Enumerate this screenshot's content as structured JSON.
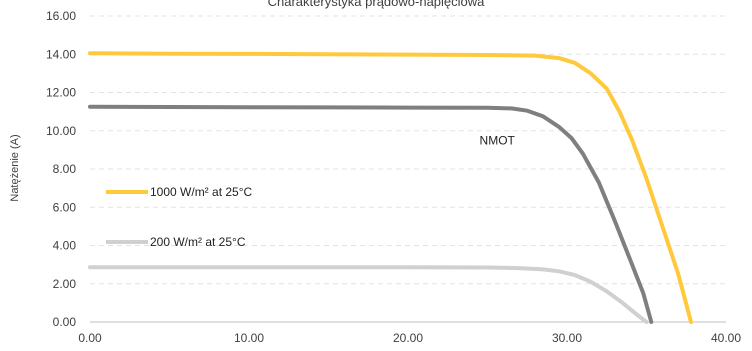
{
  "chart_data": {
    "type": "line",
    "title": "Charakterystyka prądowo-napięciowa",
    "xlabel": "",
    "ylabel": "Natężenie (A)",
    "xlim": [
      0,
      40
    ],
    "ylim": [
      0,
      16
    ],
    "x_ticks": [
      "0.00",
      "10.00",
      "20.00",
      "30.00",
      "40.00"
    ],
    "y_ticks": [
      "0.00",
      "2.00",
      "4.00",
      "6.00",
      "8.00",
      "10.00",
      "12.00",
      "14.00",
      "16.00"
    ],
    "grid": "horizontal dashed",
    "legend_position": "left",
    "annotations": [
      {
        "text": "NMOT",
        "x": 24.5,
        "y": 9.5
      }
    ],
    "series": [
      {
        "name": "1000 W/m² at 25°C",
        "color": "#FFC93C",
        "legend": true,
        "points": [
          [
            0,
            14.05
          ],
          [
            5,
            14.03
          ],
          [
            10,
            14.02
          ],
          [
            15,
            14.0
          ],
          [
            20,
            13.98
          ],
          [
            25,
            13.96
          ],
          [
            28,
            13.93
          ],
          [
            29.5,
            13.8
          ],
          [
            30.5,
            13.55
          ],
          [
            31.5,
            13.0
          ],
          [
            32.5,
            12.2
          ],
          [
            33.3,
            11.0
          ],
          [
            34.1,
            9.5
          ],
          [
            35.0,
            7.5
          ],
          [
            36.0,
            5.0
          ],
          [
            37.0,
            2.5
          ],
          [
            37.8,
            0.0
          ]
        ]
      },
      {
        "name": "",
        "color": "#7F7F7F",
        "legend": false,
        "points": [
          [
            0,
            11.25
          ],
          [
            5,
            11.24
          ],
          [
            10,
            11.23
          ],
          [
            15,
            11.22
          ],
          [
            20,
            11.21
          ],
          [
            25,
            11.2
          ],
          [
            26.5,
            11.17
          ],
          [
            27.5,
            11.05
          ],
          [
            28.5,
            10.75
          ],
          [
            29.5,
            10.2
          ],
          [
            30.3,
            9.6
          ],
          [
            31.0,
            8.8
          ],
          [
            32.0,
            7.3
          ],
          [
            33.0,
            5.3
          ],
          [
            34.0,
            3.2
          ],
          [
            34.8,
            1.5
          ],
          [
            35.3,
            0.0
          ]
        ]
      },
      {
        "name": "200 W/m² at 25°C",
        "color": "#D0D0D0",
        "legend": true,
        "points": [
          [
            0,
            2.86
          ],
          [
            5,
            2.86
          ],
          [
            10,
            2.86
          ],
          [
            15,
            2.86
          ],
          [
            20,
            2.86
          ],
          [
            25,
            2.85
          ],
          [
            27,
            2.82
          ],
          [
            28.5,
            2.75
          ],
          [
            29.5,
            2.65
          ],
          [
            30.5,
            2.45
          ],
          [
            31.5,
            2.1
          ],
          [
            32.5,
            1.6
          ],
          [
            33.5,
            1.0
          ],
          [
            34.3,
            0.45
          ],
          [
            35.0,
            0.0
          ]
        ]
      }
    ]
  }
}
